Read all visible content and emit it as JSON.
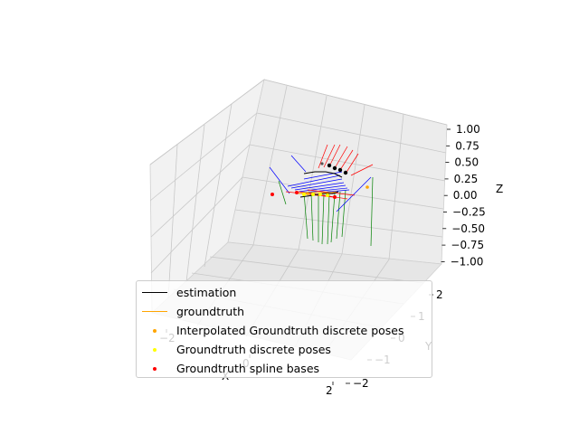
{
  "chart_data": {
    "type": "scatter3d",
    "title": "",
    "xlabel": "X",
    "ylabel": "Y",
    "zlabel": "Z",
    "xlim": [
      -2,
      2
    ],
    "ylim": [
      -2,
      2
    ],
    "zlim": [
      -1,
      1
    ],
    "z_ticks": [
      "1.00",
      "0.75",
      "0.50",
      "0.25",
      "0.00",
      "−0.25",
      "−0.50",
      "−0.75",
      "−1.00"
    ],
    "y_ticks": [
      "2",
      "1",
      "0",
      "−1",
      "−2"
    ],
    "x_ticks": [
      "−2",
      "0",
      "2"
    ],
    "grid": true,
    "legend_position": "lower-left",
    "series": [
      {
        "name": "estimation",
        "kind": "line",
        "color": "#000000"
      },
      {
        "name": "groundtruth",
        "kind": "line",
        "color": "#ffa500"
      },
      {
        "name": "Interpolated Groundtruth discrete poses",
        "kind": "scatter",
        "color": "#ffa500"
      },
      {
        "name": "Groundtruth discrete poses",
        "kind": "scatter",
        "color": "#ffff00"
      },
      {
        "name": "Groundtruth spline bases",
        "kind": "scatter",
        "color": "#ff0000"
      }
    ],
    "frame_colors": {
      "x_axis": "#ff0000",
      "y_axis": "#0000ff",
      "z_axis": "#008000"
    }
  }
}
